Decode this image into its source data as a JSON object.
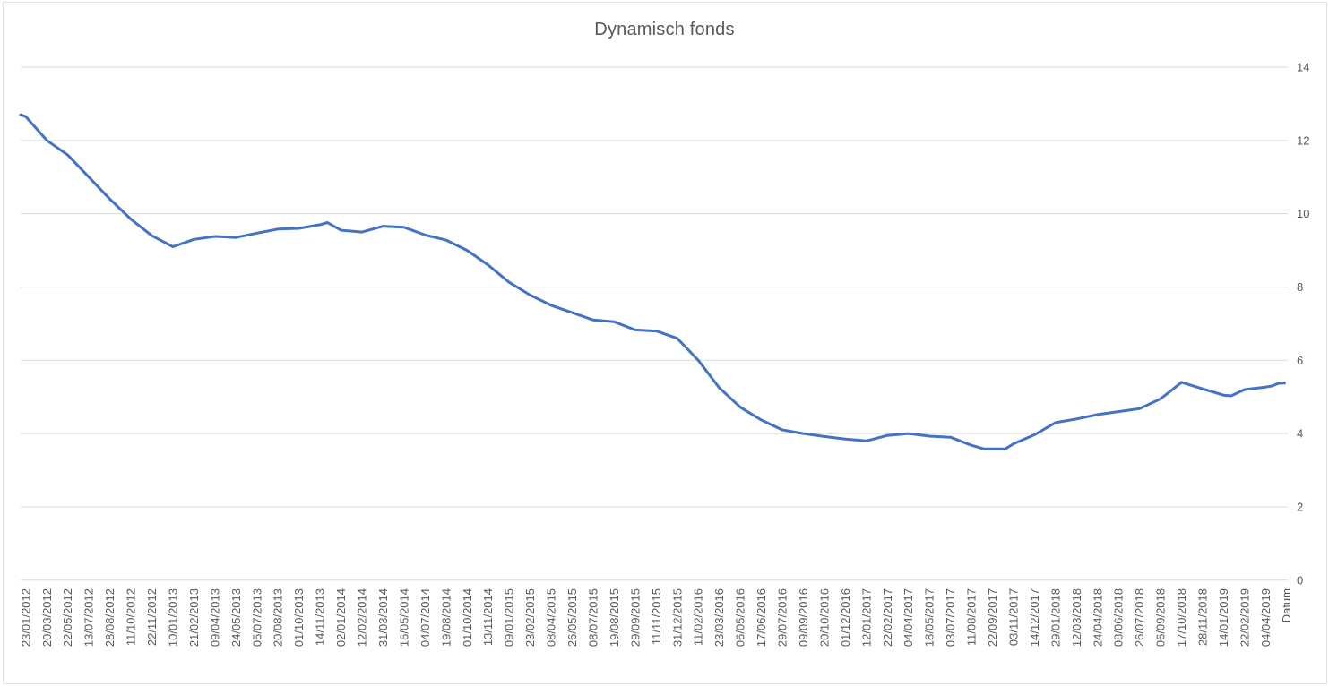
{
  "chart_data": {
    "type": "line",
    "title": "Dynamisch fonds",
    "legend": "none",
    "grid": "horizontal-only",
    "background": "#FFFFFF",
    "colors": {
      "line": "#4472C4",
      "gridline": "#D9D9D9",
      "text": "#595959",
      "border": "#E2E2E2"
    },
    "y_axis": {
      "side": "right",
      "min": 0,
      "max": 14,
      "tick_interval": 2,
      "ticks": [
        14,
        12,
        10,
        8,
        6,
        4,
        2,
        0
      ]
    },
    "x_axis": {
      "title": "Datum",
      "label_rotation_degrees": 90,
      "categories": [
        "23/01/2012",
        "20/03/2012",
        "22/05/2012",
        "13/07/2012",
        "28/08/2012",
        "11/10/2012",
        "22/11/2012",
        "10/01/2013",
        "21/02/2013",
        "09/04/2013",
        "24/05/2013",
        "05/07/2013",
        "20/08/2013",
        "01/10/2013",
        "14/11/2013",
        "02/01/2014",
        "12/02/2014",
        "31/03/2014",
        "16/05/2014",
        "04/07/2014",
        "19/08/2014",
        "01/10/2014",
        "13/11/2014",
        "09/01/2015",
        "23/02/2015",
        "08/04/2015",
        "26/05/2015",
        "08/07/2015",
        "19/08/2015",
        "29/09/2015",
        "11/11/2015",
        "31/12/2015",
        "11/02/2016",
        "23/03/2016",
        "06/05/2016",
        "17/06/2016",
        "29/07/2016",
        "09/09/2016",
        "20/10/2016",
        "01/12/2016",
        "12/01/2017",
        "22/02/2017",
        "04/04/2017",
        "18/05/2017",
        "03/07/2017",
        "11/08/2017",
        "22/09/2017",
        "03/11/2017",
        "14/12/2017",
        "29/01/2018",
        "12/03/2018",
        "24/04/2018",
        "08/06/2018",
        "26/07/2018",
        "06/09/2018",
        "17/10/2018",
        "28/11/2018",
        "14/01/2019",
        "22/02/2019",
        "04/04/2019"
      ]
    },
    "series": [
      {
        "points": [
          [
            -0.25,
            12.7
          ],
          [
            0,
            12.65
          ],
          [
            1,
            12.0
          ],
          [
            2,
            11.6
          ],
          [
            3,
            11.0
          ],
          [
            4,
            10.4
          ],
          [
            5,
            9.85
          ],
          [
            6,
            9.4
          ],
          [
            7,
            9.1
          ],
          [
            8,
            9.3
          ],
          [
            9,
            9.38
          ],
          [
            10,
            9.35
          ],
          [
            11,
            9.47
          ],
          [
            12,
            9.58
          ],
          [
            13,
            9.6
          ],
          [
            14,
            9.7
          ],
          [
            14.35,
            9.76
          ],
          [
            15,
            9.55
          ],
          [
            16,
            9.5
          ],
          [
            17,
            9.66
          ],
          [
            18,
            9.63
          ],
          [
            19,
            9.42
          ],
          [
            20,
            9.28
          ],
          [
            21,
            9.0
          ],
          [
            22,
            8.6
          ],
          [
            23,
            8.13
          ],
          [
            24,
            7.78
          ],
          [
            25,
            7.5
          ],
          [
            26,
            7.3
          ],
          [
            27,
            7.1
          ],
          [
            28,
            7.05
          ],
          [
            29,
            6.83
          ],
          [
            30,
            6.8
          ],
          [
            31,
            6.6
          ],
          [
            32,
            6.0
          ],
          [
            33,
            5.25
          ],
          [
            34,
            4.72
          ],
          [
            35,
            4.37
          ],
          [
            36,
            4.1
          ],
          [
            37,
            4.0
          ],
          [
            38,
            3.92
          ],
          [
            39,
            3.85
          ],
          [
            40,
            3.8
          ],
          [
            41,
            3.95
          ],
          [
            42,
            4.0
          ],
          [
            43,
            3.93
          ],
          [
            44,
            3.9
          ],
          [
            45,
            3.68
          ],
          [
            45.6,
            3.58
          ],
          [
            46,
            3.58
          ],
          [
            46.6,
            3.58
          ],
          [
            47,
            3.72
          ],
          [
            48,
            3.97
          ],
          [
            49,
            4.3
          ],
          [
            50,
            4.4
          ],
          [
            51,
            4.52
          ],
          [
            52,
            4.6
          ],
          [
            53,
            4.68
          ],
          [
            54,
            4.95
          ],
          [
            55,
            5.4
          ],
          [
            56,
            5.22
          ],
          [
            57,
            5.05
          ],
          [
            57.35,
            5.03
          ],
          [
            58,
            5.2
          ],
          [
            59,
            5.27
          ],
          [
            59.3,
            5.3
          ],
          [
            59.6,
            5.37
          ],
          [
            59.9,
            5.38
          ]
        ]
      }
    ]
  }
}
